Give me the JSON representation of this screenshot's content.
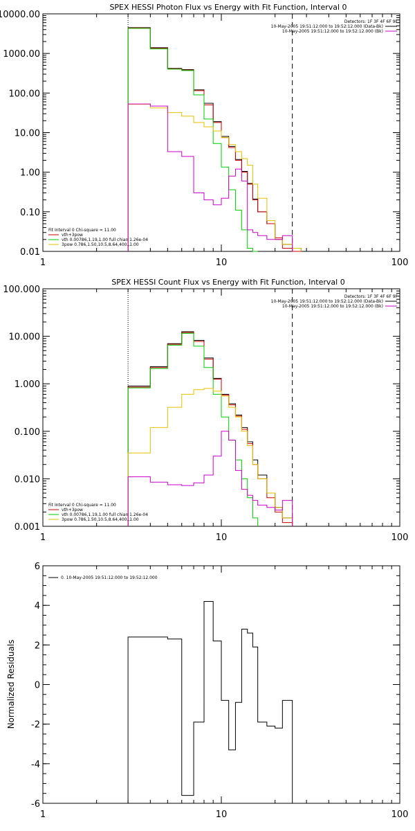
{
  "chart_data": [
    {
      "type": "line",
      "title": "SPEX HESSI Photon Flux vs Energy with Fit Function, Interval 0",
      "x_scale": "log",
      "y_scale": "log",
      "xlim": [
        1,
        100
      ],
      "ylim": [
        0.01,
        10000
      ],
      "x_ticks": [
        1,
        10,
        100
      ],
      "x_tick_labels": [
        "1",
        "10",
        "100"
      ],
      "y_ticks": [
        0.01,
        0.1,
        1,
        10,
        100,
        1000,
        10000
      ],
      "y_tick_labels": [
        "0.01",
        "0.10",
        "1.00",
        "10.00",
        "100.00",
        "1000.00",
        "10000.00"
      ],
      "vlines": [
        {
          "x": 3,
          "style": "dotted"
        },
        {
          "x": 25,
          "style": "dashed"
        }
      ],
      "legend_top": {
        "position": "top-right",
        "lines": [
          "Detectors: 1F 3F 4F 6F 9F",
          "10-May-2005 19:51:12.000 to 19:52:12.000 (Data-Bk)",
          "10-May-2005 19:51:12.000 to 19:52:12.000 (Bk)"
        ],
        "colors": [
          null,
          "#000000",
          "#cc00cc"
        ]
      },
      "legend_bottom": {
        "position": "bottom-left",
        "lines": [
          "Fit Interval 0   Chi-square = 11.00",
          "vth+3pow",
          "vth 0.00786,1.19,1.00  full chian 1.26e-04",
          "3pow 0.786,1.50,10.5,8.64,400.,1.00"
        ],
        "colors": [
          null,
          "#cc0000",
          "#00cc00",
          "#e6c000"
        ]
      },
      "bin_edges": [
        3,
        4,
        5,
        6,
        7,
        8,
        9,
        10,
        11,
        12,
        13,
        14,
        15,
        16,
        18,
        20,
        22,
        25,
        28
      ],
      "series": [
        {
          "color": "#000000",
          "values": [
            4500,
            1400,
            420,
            390,
            120,
            55,
            19,
            8,
            4.5,
            2.1,
            1.05,
            0.52,
            0.21,
            0.1,
            0.05,
            0.02,
            0.015,
            0.012
          ]
        },
        {
          "color": "#cc0000",
          "values": [
            4400,
            1350,
            410,
            380,
            115,
            50,
            18,
            7.5,
            4.2,
            2.0,
            1.0,
            0.5,
            0.2,
            0.1,
            0.05,
            0.022,
            0.012,
            0.01
          ]
        },
        {
          "color": "#00cc00",
          "values": [
            4300,
            1300,
            400,
            370,
            90,
            22,
            5.3,
            1.35,
            0.36,
            0.11,
            0.035,
            0.012,
            0.01
          ]
        },
        {
          "color": "#e6c000",
          "values": [
            52,
            42,
            32,
            26,
            18,
            14,
            11,
            7.5,
            5,
            3.3,
            2.2,
            1.5,
            0.5,
            0.22,
            0.06,
            0.02,
            0.015,
            0.012
          ]
        },
        {
          "color": "#cc00cc",
          "values": [
            53,
            47,
            3.3,
            2.5,
            0.3,
            0.2,
            0.15,
            0.22,
            0.8,
            1.2,
            0.6,
            0.035,
            0.03,
            0.025,
            0.02,
            0.02,
            0.025
          ]
        }
      ]
    },
    {
      "type": "line",
      "title": "SPEX HESSI Count Flux vs Energy with Fit Function, Interval 0",
      "x_scale": "log",
      "y_scale": "log",
      "xlim": [
        1,
        100
      ],
      "ylim": [
        0.001,
        100
      ],
      "x_ticks": [
        1,
        10,
        100
      ],
      "x_tick_labels": [
        "1",
        "10",
        "100"
      ],
      "y_ticks": [
        0.001,
        0.01,
        0.1,
        1,
        10,
        100
      ],
      "y_tick_labels": [
        "0.001",
        "0.010",
        "0.100",
        "1.000",
        "10.000",
        "100.000"
      ],
      "vlines": [
        {
          "x": 3,
          "style": "dotted"
        },
        {
          "x": 25,
          "style": "dashed"
        }
      ],
      "legend_top": {
        "position": "top-right",
        "lines": [
          "Detectors: 1F 3F 4F 6F 9F",
          "10-May-2005 19:51:12.000 to 19:52:12.000 (Data-Bk)",
          "10-May-2005 19:51:12.000 to 19:52:12.000 (Bk)"
        ],
        "colors": [
          null,
          "#000000",
          "#cc00cc"
        ]
      },
      "legend_bottom": {
        "position": "bottom-left",
        "lines": [
          "Fit Interval 0   Chi-square = 11.00",
          "vth+3pow",
          "vth 0.00786,1.19,1.00  full chian 1.26e-04",
          "3pow 0.786,1.50,10.5,8.64,400.,1.00"
        ],
        "colors": [
          null,
          "#cc0000",
          "#00cc00",
          "#e6c000"
        ]
      },
      "bin_edges": [
        3,
        4,
        5,
        6,
        7,
        8,
        9,
        10,
        11,
        12,
        13,
        14,
        15,
        16,
        18,
        20,
        22,
        25,
        28
      ],
      "series": [
        {
          "color": "#000000",
          "values": [
            0.9,
            2.3,
            7.0,
            12.5,
            8.2,
            3.5,
            1.3,
            0.6,
            0.38,
            0.22,
            0.12,
            0.06,
            0.025,
            0.012,
            0.005,
            0.0025,
            0.0015
          ]
        },
        {
          "color": "#cc0000",
          "values": [
            0.85,
            2.2,
            6.8,
            12,
            7.8,
            3.3,
            1.25,
            0.58,
            0.36,
            0.21,
            0.11,
            0.055,
            0.02,
            0.01,
            0.004,
            0.002,
            0.0012
          ]
        },
        {
          "color": "#00cc00",
          "values": [
            0.82,
            2.1,
            6.5,
            11.5,
            6.2,
            2.2,
            0.6,
            0.2,
            0.065,
            0.025,
            0.01,
            0.004,
            0.0015
          ]
        },
        {
          "color": "#e6c000",
          "values": [
            0.035,
            0.12,
            0.32,
            0.6,
            0.75,
            0.8,
            0.7,
            0.55,
            0.32,
            0.2,
            0.1,
            0.05,
            0.02,
            0.01,
            0.005,
            0.0025,
            0.0015
          ]
        },
        {
          "color": "#cc00cc",
          "values": [
            0.011,
            0.0085,
            0.0075,
            0.0072,
            0.0082,
            0.012,
            0.03,
            0.1,
            0.065,
            0.015,
            0.006,
            0.0045,
            0.0035,
            0.0028,
            0.0025,
            0.0022,
            0.0035
          ]
        }
      ]
    },
    {
      "type": "line",
      "title": "",
      "ylabel": "Normalized Residuals",
      "x_scale": "log",
      "y_scale": "linear",
      "xlim": [
        1,
        100
      ],
      "ylim": [
        -6,
        6
      ],
      "x_ticks": [
        1,
        10,
        100
      ],
      "x_tick_labels": [
        "1",
        "10",
        "100"
      ],
      "y_ticks": [
        -6,
        -4,
        -2,
        0,
        2,
        4,
        6
      ],
      "y_tick_labels": [
        "-6",
        "-4",
        "-2",
        "0",
        "2",
        "4",
        "6"
      ],
      "legend": {
        "position": "top-left",
        "lines": [
          "0. 10-May-2005 19:51:12.000 to 19:52:12.000"
        ],
        "colors": [
          "#000000"
        ]
      },
      "bin_edges": [
        3,
        4,
        5,
        6,
        7,
        8,
        9,
        10,
        11,
        12,
        13,
        14,
        15,
        16,
        18,
        20,
        22,
        25
      ],
      "series": [
        {
          "color": "#000000",
          "values": [
            2.4,
            2.4,
            2.3,
            -5.6,
            -1.9,
            4.2,
            2.2,
            -0.8,
            -3.3,
            -0.9,
            2.8,
            2.6,
            1.9,
            -1.9,
            -2.1,
            -2.2,
            -0.8
          ]
        }
      ]
    }
  ]
}
